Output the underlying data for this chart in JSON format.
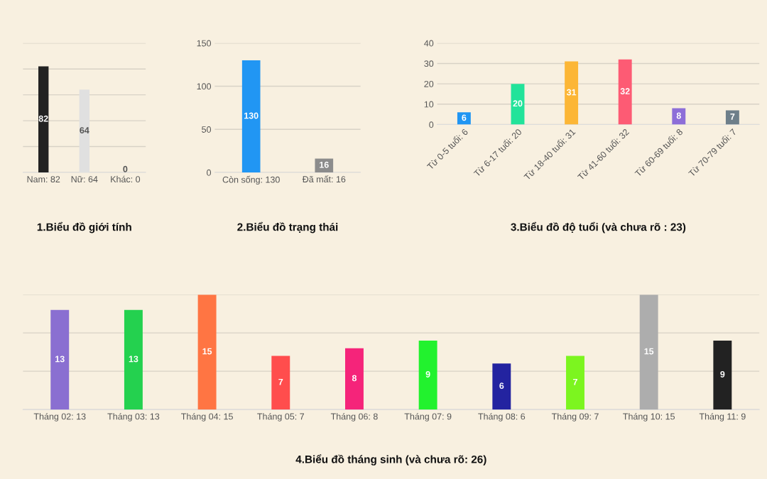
{
  "chart_data": [
    {
      "type": "bar",
      "title": "1.Biểu đồ giới tính",
      "categories": [
        "Nam: 82",
        "Nữ: 64",
        "Khác: 0"
      ],
      "values": [
        82,
        64,
        0
      ],
      "colors": [
        "#222222",
        "#e0e0e0",
        "#e0e0e0"
      ],
      "ylim": [
        0,
        100
      ],
      "yticks": [
        {
          "value": 0,
          "label": null
        },
        {
          "value": 20,
          "label": null
        },
        {
          "value": 40,
          "label": null
        },
        {
          "value": 60,
          "label": null
        },
        {
          "value": 80,
          "label": null
        },
        {
          "value": 100,
          "label": null
        }
      ],
      "tick_labels": "x",
      "grid": "y",
      "data_labels": true
    },
    {
      "type": "bar",
      "title": "2.Biểu đồ trạng thái",
      "categories": [
        "Còn sống: 130",
        "Đã mất: 16"
      ],
      "values": [
        130,
        16
      ],
      "colors": [
        "#2196f3",
        "#8c8c8c"
      ],
      "ylim": [
        0,
        150
      ],
      "yticks": [
        0,
        50,
        100,
        150
      ],
      "grid": "y",
      "data_labels": true
    },
    {
      "type": "bar",
      "title": "3.Biểu đồ độ tuổi (và chưa rõ : 23)",
      "categories": [
        "Từ 0-5 tuổi: 6",
        "Từ 6-17 tuổi: 20",
        "Từ 18-40 tuổi: 31",
        "Từ 41-60 tuổi: 32",
        "Từ 60-69 tuổi: 8",
        "Từ 70-79 tuổi: 7"
      ],
      "values": [
        6,
        20,
        31,
        32,
        8,
        7
      ],
      "colors": [
        "#2196f3",
        "#22e39a",
        "#fcb636",
        "#fd5b74",
        "#8d6ed8",
        "#6e7f8a"
      ],
      "ylim": [
        0,
        40
      ],
      "yticks": [
        0,
        10,
        20,
        30,
        40
      ],
      "grid": "y",
      "data_labels": true
    },
    {
      "type": "bar",
      "title": "4.Biểu đồ tháng sinh (và chưa rõ: 26)",
      "categories": [
        "Tháng 02: 13",
        "Tháng 03: 13",
        "Tháng 04: 15",
        "Tháng 05: 7",
        "Tháng 06: 8",
        "Tháng 07: 9",
        "Tháng 08: 6",
        "Tháng 09: 7",
        "Tháng 10: 15",
        "Tháng 11: 9"
      ],
      "values": [
        13,
        13,
        15,
        7,
        8,
        9,
        6,
        7,
        15,
        9
      ],
      "colors": [
        "#8a6fd1",
        "#24d14f",
        "#ff7543",
        "#ff4d4d",
        "#f5247a",
        "#22f22e",
        "#2323a0",
        "#7cf51f",
        "#adadad",
        "#222222"
      ],
      "ylim": [
        0,
        15
      ],
      "yticks": [
        {
          "value": 0,
          "label": null
        },
        {
          "value": 5,
          "label": null
        },
        {
          "value": 10,
          "label": null
        },
        {
          "value": 15,
          "label": null
        }
      ],
      "tick_labels": "x",
      "grid": "y",
      "data_labels": true
    }
  ]
}
